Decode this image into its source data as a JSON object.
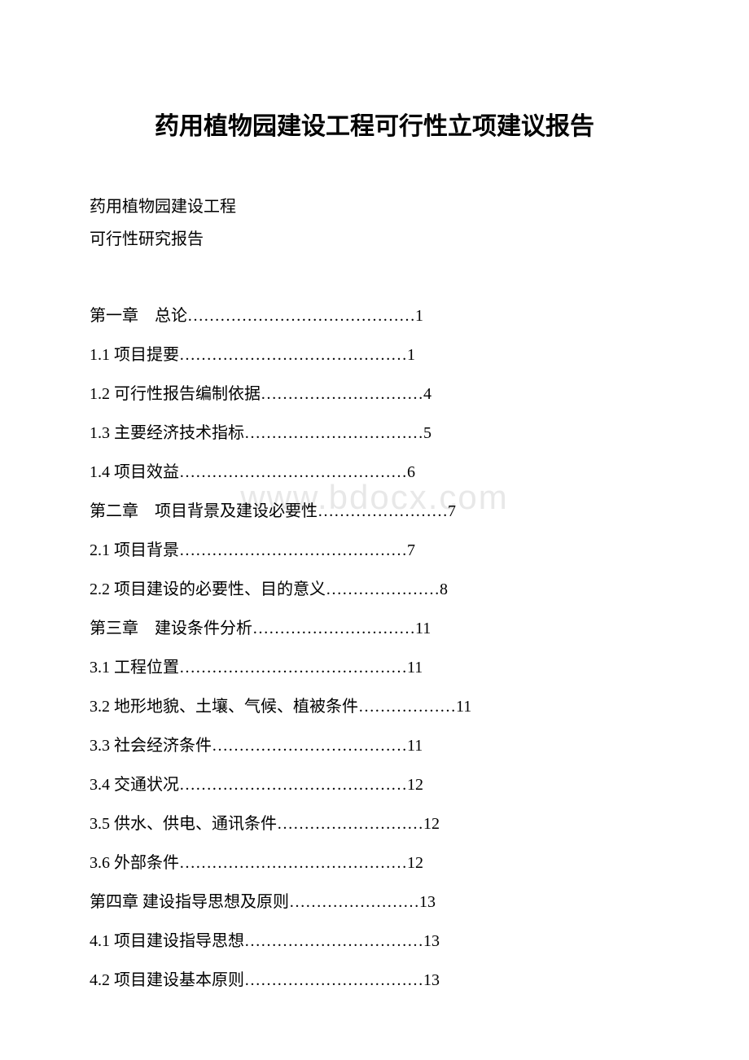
{
  "document": {
    "title": "药用植物园建设工程可行性立项建议报告",
    "subtitle1": "药用植物园建设工程",
    "subtitle2": "可行性研究报告",
    "watermark": "www.bdocx.com"
  },
  "toc": {
    "items": [
      {
        "label": "第一章　总论",
        "dots": "……………………………………",
        "page": "1"
      },
      {
        "label": "1.1 项目提要",
        "dots": "……………………………………",
        "page": "1"
      },
      {
        "label": "1.2 可行性报告编制依据",
        "dots": "…………………………",
        "page": "4"
      },
      {
        "label": "1.3 主要经济技术指标",
        "dots": "……………………………",
        "page": "5"
      },
      {
        "label": "1.4 项目效益",
        "dots": "……………………………………",
        "page": "6"
      },
      {
        "label": "第二章　项目背景及建设必要性",
        "dots": "……………………",
        "page": "7"
      },
      {
        "label": "2.1 项目背景",
        "dots": "……………………………………",
        "page": "7"
      },
      {
        "label": "2.2 项目建设的必要性、目的意义",
        "dots": "…………………",
        "page": "8"
      },
      {
        "label": "第三章　建设条件分析",
        "dots": "…………………………",
        "page": "11"
      },
      {
        "label": "3.1 工程位置",
        "dots": "……………………………………",
        "page": "11"
      },
      {
        "label": "3.2 地形地貌、土壤、气候、植被条件",
        "dots": "………………",
        "page": "11"
      },
      {
        "label": "3.3 社会经济条件",
        "dots": "………………………………",
        "page": "11"
      },
      {
        "label": "3.4 交通状况",
        "dots": "……………………………………",
        "page": "12"
      },
      {
        "label": "3.5 供水、供电、通讯条件",
        "dots": "………………………",
        "page": "12"
      },
      {
        "label": "3.6 外部条件",
        "dots": "……………………………………",
        "page": "12"
      },
      {
        "label": "第四章 建设指导思想及原则",
        "dots": "……………………",
        "page": "13"
      },
      {
        "label": "4.1 项目建设指导思想",
        "dots": "……………………………",
        "page": "13"
      },
      {
        "label": "4.2 项目建设基本原则",
        "dots": "……………………………",
        "page": "13"
      }
    ]
  },
  "styling": {
    "background_color": "#ffffff",
    "text_color": "#000000",
    "watermark_color": "#e8e8e8",
    "title_fontsize": 30,
    "body_fontsize": 20,
    "line_height": 2.4
  }
}
